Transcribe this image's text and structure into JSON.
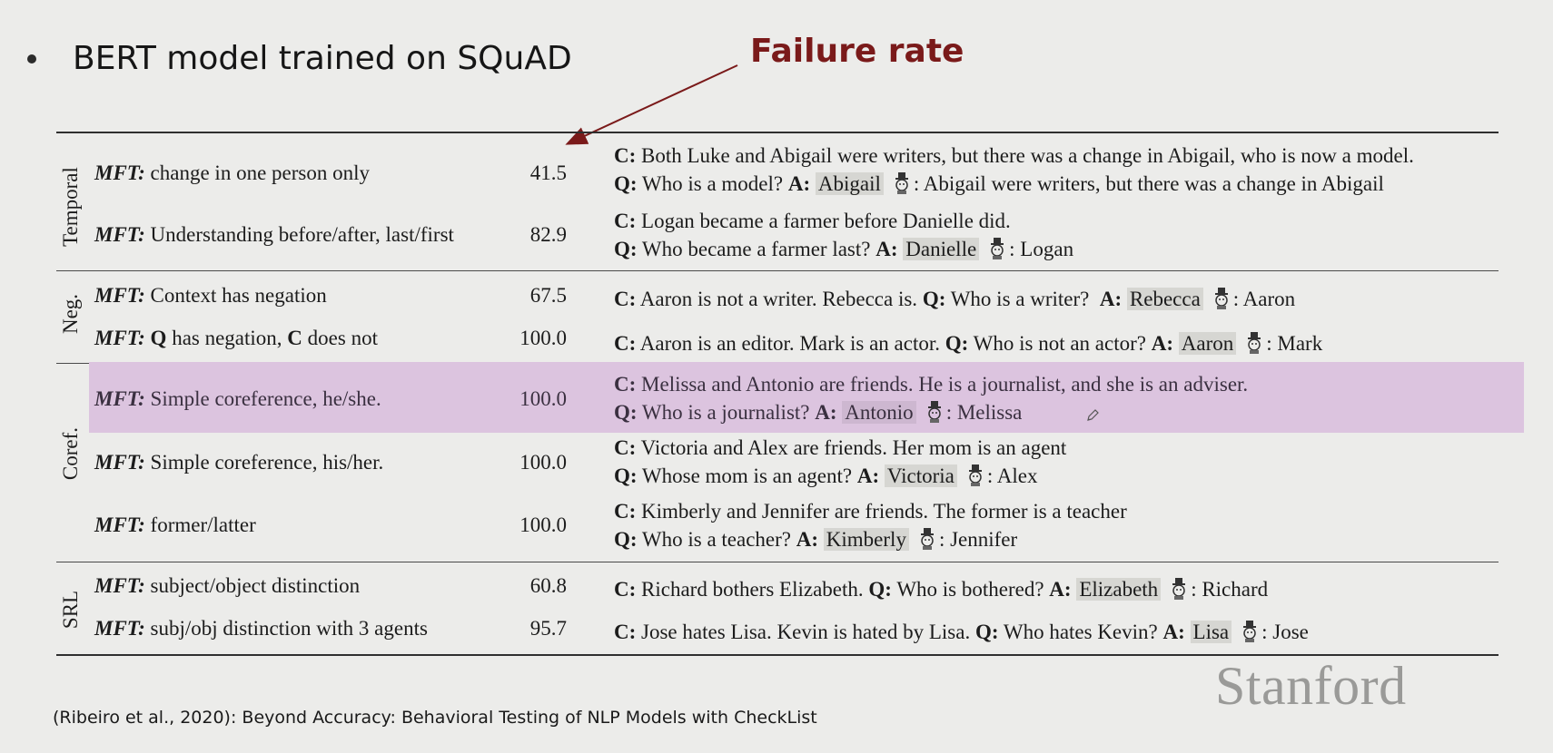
{
  "slide": {
    "title": "BERT model trained on SQuAD",
    "callout": "Failure rate",
    "footnote": "(Ribeiro et al., 2020): Beyond Accuracy: Behavioral Testing of NLP Models with CheckList",
    "logo_text": "Stanford"
  },
  "colors": {
    "callout": "#7a1a1a",
    "highlight_row": "#dcc4df",
    "answer_box": "#d6d6d2"
  },
  "icons": {
    "model_prediction": "robot-icon",
    "cursor": "pencil-icon"
  },
  "table": {
    "groups": [
      "Temporal",
      "Neg.",
      "Coref.",
      "SRL"
    ],
    "mft_label": "MFT:",
    "context_label": "C:",
    "question_label": "Q:",
    "answer_label": "A:",
    "rows": [
      {
        "group": "Temporal",
        "test": "change in one person only",
        "rate": "41.5",
        "c": "Both Luke and Abigail were writers, but there was a change in Abigail, who is now a model.",
        "q": "Who is a model?",
        "a": "Abigail",
        "pred": ": Abigail were writers, but there was a change in Abigail"
      },
      {
        "group": "Temporal",
        "test": "Understanding before/after, last/first",
        "rate": "82.9",
        "c": "Logan became a farmer before Danielle did.",
        "q": "Who became a farmer last?",
        "a": "Danielle",
        "pred": ": Logan"
      },
      {
        "group": "Neg.",
        "test": "Context has negation",
        "rate": "67.5",
        "c": "Aaron is not a writer. Rebecca is.",
        "q": "Who is a writer?",
        "a": "Rebecca",
        "pred": ": Aaron"
      },
      {
        "group": "Neg.",
        "test_q": "Q",
        "test_mid": "has negation,",
        "test_c": "C",
        "test_end": "does not",
        "rate": "100.0",
        "c": "Aaron is an editor. Mark is an actor.",
        "q": "Who is not an actor?",
        "a": "Aaron",
        "pred": ": Mark"
      },
      {
        "group": "Coref.",
        "test": "Simple coreference, he/she.",
        "rate": "100.0",
        "c": "Melissa and Antonio are friends. He is a journalist, and she is an adviser.",
        "q": "Who is a journalist?",
        "a": "Antonio",
        "pred": ": Melissa"
      },
      {
        "group": "Coref.",
        "test": "Simple coreference, his/her.",
        "rate": "100.0",
        "c": "Victoria and Alex are friends. Her mom is an agent",
        "q": "Whose mom is an agent?",
        "a": "Victoria",
        "pred": ": Alex"
      },
      {
        "group": "Coref.",
        "test": "former/latter",
        "rate": "100.0",
        "c": "Kimberly and Jennifer are friends. The former is a teacher",
        "q": "Who is a teacher?",
        "a": "Kimberly",
        "pred": ": Jennifer"
      },
      {
        "group": "SRL",
        "test": "subject/object distinction",
        "rate": "60.8",
        "c": "Richard bothers Elizabeth.",
        "q": "Who is bothered?",
        "a": "Elizabeth",
        "pred": ": Richard"
      },
      {
        "group": "SRL",
        "test": "subj/obj distinction with 3 agents",
        "rate": "95.7",
        "c": "Jose hates Lisa. Kevin is hated by Lisa.",
        "q": "Who hates Kevin?",
        "a": "Lisa",
        "pred": ": Jose"
      }
    ]
  }
}
